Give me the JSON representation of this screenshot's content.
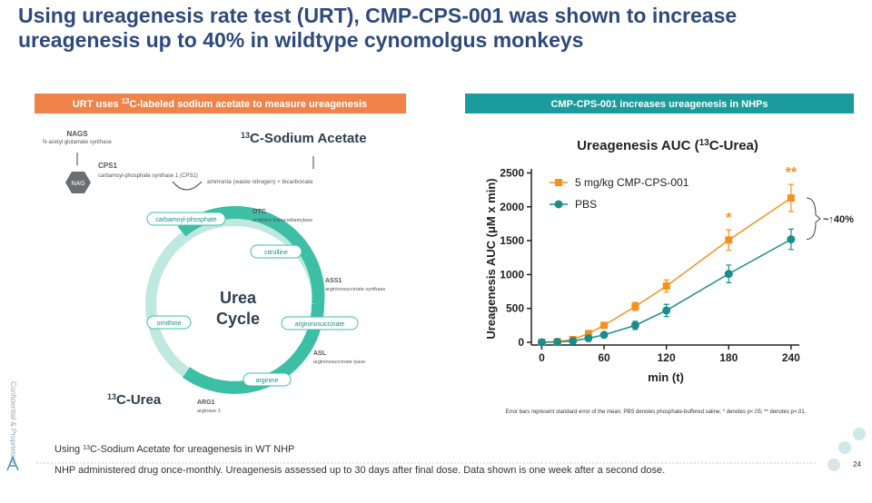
{
  "header": {
    "title": "Using ureagenesis rate test (URT), CMP-CPS-001 was shown to increase ureagenesis up to 40% in wildtype cynomolgus monkeys"
  },
  "left_panel": {
    "banner": [
      "URT uses ",
      "13",
      "C-labeled sodium acetate to measure ureagenesis"
    ],
    "nodes": [
      {
        "label": "NAGS",
        "sub": "N-acetyl glutamate synthase"
      },
      {
        "label": "NAG"
      },
      {
        "label": "CPS1",
        "sub": "carbamoyl-phosphate synthase 1 (CPS1)"
      },
      {
        "label": [
          "13",
          "C-Sodium Acetate"
        ]
      },
      {
        "label": "ammonia (waste nitrogen) + bicarbonate"
      },
      {
        "label": "carbamoyl-phosphate"
      },
      {
        "label": "OTC",
        "sub": "ornithine transcarbamylase"
      },
      {
        "label": "citrulline"
      },
      {
        "label": "ASS1",
        "sub": "argininosuccinate synthase"
      },
      {
        "label": "argininosuccinate"
      },
      {
        "label": "ASL",
        "sub": "argininosuccinate lyase"
      },
      {
        "label": "arginine"
      },
      {
        "label": "ARG1",
        "sub": "arginase 1"
      },
      {
        "label": "ornithine"
      },
      {
        "label": [
          "Urea",
          "Cycle"
        ]
      },
      {
        "label": [
          "13",
          "C-Urea"
        ]
      }
    ]
  },
  "right_panel": {
    "banner": "CMP-CPS-001 increases ureagenesis in NHPs",
    "footnote": "Error bars represent standard error of the mean; PBS denotes phosphate-buffered saline; * denotes p<.05; ** denotes p<.01."
  },
  "chart_data": {
    "type": "line",
    "title": [
      "Ureagenesis AUC (",
      "13",
      "C-Urea)"
    ],
    "x_label": "min (t)",
    "y_label": "Ureagenesis AUC (μM x min)",
    "x": [
      0,
      15,
      30,
      45,
      60,
      90,
      120,
      180,
      240
    ],
    "series": [
      {
        "name": "5 mg/kg CMP-CPS-001",
        "color": "#f5921e",
        "marker": "square",
        "values": [
          0,
          10,
          40,
          130,
          250,
          530,
          830,
          1510,
          2130
        ],
        "errors": [
          10,
          15,
          20,
          25,
          35,
          60,
          90,
          150,
          200
        ]
      },
      {
        "name": "PBS",
        "color": "#1b8c8c",
        "marker": "circle",
        "values": [
          0,
          5,
          20,
          60,
          110,
          250,
          470,
          1010,
          1520
        ],
        "errors": [
          10,
          10,
          15,
          20,
          30,
          60,
          90,
          130,
          150
        ]
      }
    ],
    "annotations": [
      "*",
      "**",
      "~↑40%"
    ],
    "xlim": [
      -10,
      248
    ],
    "xticks": [
      0,
      60,
      120,
      180,
      240
    ],
    "ylim": [
      -40,
      2560
    ],
    "yticks": [
      0,
      500,
      1000,
      1500,
      2000,
      2500
    ],
    "legend": "upper left"
  },
  "footer": {
    "lines": [
      [
        "Using ",
        "13",
        "C-Sodium Acetate for ureagenesis in WT NHP"
      ],
      [
        "NHP administered drug once-monthly. Ureagenesis assessed up to 30 days after final dose. Data shown is one week after a second dose."
      ]
    ],
    "page": "24",
    "side": "Confidential & Proprietary"
  }
}
